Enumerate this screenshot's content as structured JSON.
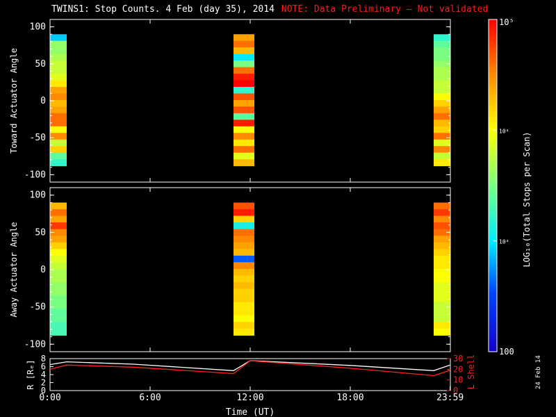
{
  "title": "TWINS1: Stop Counts.  4 Feb (day  35), 2014",
  "note": "NOTE: Data Preliminary – Not validated",
  "date_stamp": "24 Feb 14",
  "colors": {
    "background": "#000000",
    "axis": "#ffffff",
    "note": "#ff1a1a",
    "r_line": "#ffffff",
    "lshell_line": "#ff2020"
  },
  "chart_data": [
    {
      "type": "heatmap",
      "panel": "toward",
      "ylabel": "Toward Actuator Angle",
      "ylim": [
        -110,
        110
      ],
      "yticks": [
        100,
        50,
        0,
        -50,
        -100
      ],
      "angle_range": [
        -88,
        90
      ],
      "xlim_hours": [
        0,
        24
      ],
      "data_blocks": [
        {
          "start": "0:00",
          "end": "1:00",
          "profile": [
            2.9,
            3.6,
            3.6,
            3.7,
            3.8,
            3.8,
            3.9,
            4.1,
            4.4,
            4.5,
            4.3,
            4.4,
            4.6,
            4.6,
            4.0,
            4.5,
            3.8,
            4.2,
            3.4,
            3.2
          ]
        },
        {
          "start": "11:00",
          "end": "12:15",
          "profile": [
            4.4,
            4.6,
            4.3,
            3.0,
            3.5,
            4.6,
            4.9,
            5.0,
            3.2,
            4.7,
            4.4,
            4.7,
            3.4,
            4.9,
            4.0,
            4.5,
            4.1,
            4.6,
            3.9,
            4.3
          ]
        },
        {
          "start": "23:00",
          "end": "23:59",
          "profile": [
            3.2,
            3.4,
            3.5,
            3.5,
            3.6,
            3.7,
            3.7,
            3.8,
            3.8,
            4.0,
            4.2,
            4.4,
            4.6,
            4.3,
            4.2,
            4.6,
            3.9,
            4.5,
            3.8,
            4.1
          ]
        }
      ]
    },
    {
      "type": "heatmap",
      "panel": "away",
      "ylabel": "Away Actuator Angle",
      "ylim": [
        -110,
        110
      ],
      "yticks": [
        100,
        50,
        0,
        -50,
        -100
      ],
      "angle_range": [
        -88,
        90
      ],
      "xlim_hours": [
        0,
        24
      ],
      "data_blocks": [
        {
          "start": "0:00",
          "end": "1:00",
          "profile": [
            4.3,
            4.6,
            4.4,
            4.8,
            4.5,
            4.4,
            4.2,
            4.0,
            3.9,
            3.8,
            3.7,
            3.7,
            3.6,
            3.6,
            3.5,
            3.5,
            3.4,
            3.4,
            3.3,
            3.3
          ]
        },
        {
          "start": "11:00",
          "end": "12:15",
          "profile": [
            4.7,
            4.9,
            4.2,
            3.1,
            4.6,
            4.5,
            4.4,
            4.3,
            2.6,
            4.5,
            4.3,
            4.2,
            4.3,
            4.2,
            4.2,
            4.1,
            4.1,
            4.0,
            4.2,
            4.1
          ]
        },
        {
          "start": "23:00",
          "end": "23:59",
          "profile": [
            4.6,
            4.8,
            4.5,
            4.7,
            4.6,
            4.4,
            4.3,
            4.2,
            4.1,
            4.1,
            4.0,
            4.0,
            3.9,
            3.9,
            3.9,
            3.8,
            3.8,
            3.8,
            4.1,
            4.0
          ]
        }
      ]
    },
    {
      "type": "line",
      "panel": "orbit",
      "ylabel": "R [Rₑ]",
      "ylabel_right": "L Shell",
      "xlabel": "Time (UT)",
      "xticks": [
        "0:00",
        "6:00",
        "12:00",
        "18:00",
        "23:59"
      ],
      "ylim": [
        0,
        8
      ],
      "yticks": [
        0,
        2,
        4,
        6,
        8
      ],
      "ylim_right": [
        0,
        30
      ],
      "yticks_right": [
        0,
        10,
        20,
        30
      ],
      "series": [
        {
          "axis": "left",
          "x": [
            "0:00",
            "1:00",
            "5:00",
            "11:00",
            "12:00",
            "18:00",
            "23:00",
            "23:59"
          ],
          "values": [
            6.5,
            7.2,
            6.6,
            5.0,
            7.5,
            6.3,
            5.0,
            6.4
          ]
        },
        {
          "axis": "right",
          "x": [
            "0:00",
            "1:00",
            "5:00",
            "11:00",
            "12:00",
            "18:00",
            "23:00",
            "23:59"
          ],
          "values": [
            20,
            24,
            22,
            16,
            28,
            21,
            14,
            19
          ]
        }
      ]
    }
  ],
  "colorbar": {
    "label": "LOG₁₀(Total Stops per Scan)",
    "scale": "log",
    "range": [
      100,
      100000
    ],
    "tick_labels": [
      "10⁵",
      "10⁴",
      "10³",
      "100"
    ],
    "tick_values": [
      100000,
      10000,
      1000,
      100
    ]
  }
}
